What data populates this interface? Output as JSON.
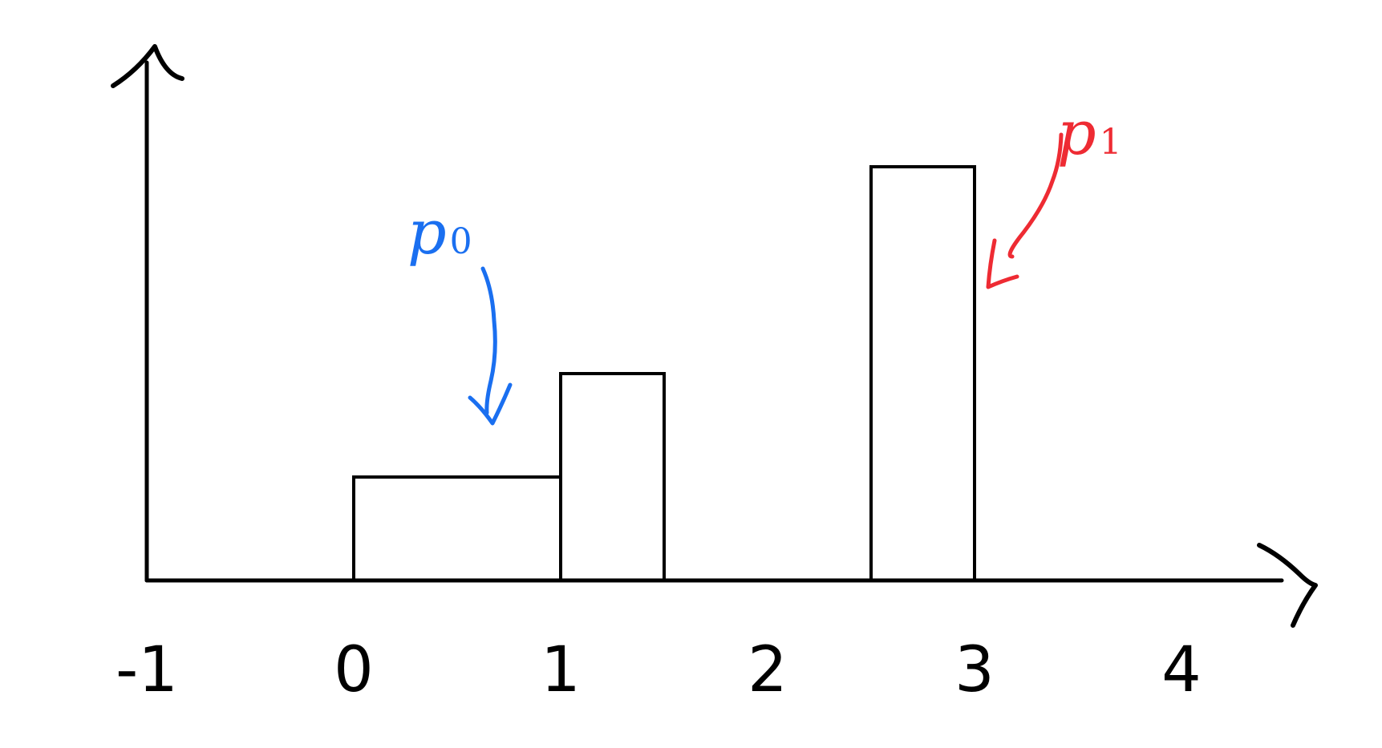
{
  "chart_data": {
    "type": "bar",
    "title": "",
    "xlabel": "",
    "ylabel": "",
    "xlim": [
      -1,
      4.4
    ],
    "ylim": [
      0,
      2.25
    ],
    "x_ticks": [
      "-1",
      "0",
      "1",
      "2",
      "3",
      "4"
    ],
    "bars": [
      {
        "x0": 0,
        "x1": 1,
        "height": 1
      },
      {
        "x0": 1,
        "x1": 1.5,
        "height": 2
      },
      {
        "x0": 2.5,
        "x1": 3,
        "height": 4
      }
    ],
    "annotations": [
      {
        "label": "p",
        "subscript": "0",
        "color": "#1a6ff0",
        "points_to_x": 0.6,
        "points_to_y": 1.5
      },
      {
        "label": "p",
        "subscript": "1",
        "color": "#ee2b33",
        "points_to_x": 3,
        "points_to_y": 2.9
      }
    ],
    "grid": false,
    "legend": "none"
  }
}
